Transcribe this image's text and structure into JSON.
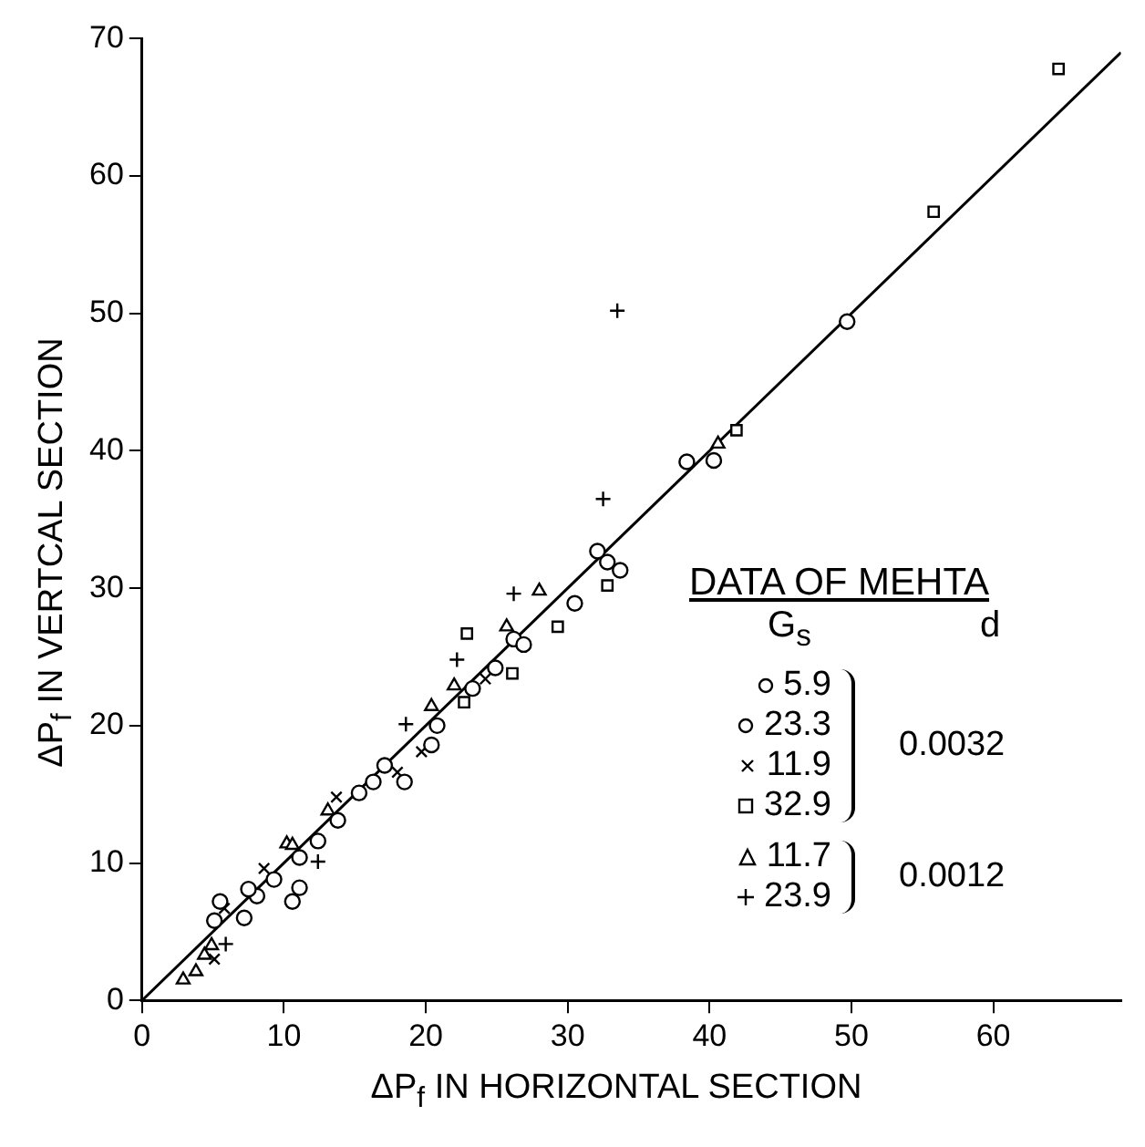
{
  "chart_data": {
    "type": "scatter",
    "xlabel": "ΔP$_{f}$ IN HORIZONTAL SECTION",
    "ylabel": "ΔP$_{f}$ IN VERTCAL SECTION",
    "legend_title": "DATA OF MEHTA",
    "annotations": [
      "G$_{s}$",
      "d",
      "0.0032",
      "0.0012"
    ],
    "xlim": [
      0,
      69
    ],
    "xticks": [
      0,
      10,
      20,
      30,
      40,
      50,
      60
    ],
    "ylim": [
      0,
      70
    ],
    "yticks": [
      0,
      10,
      20,
      30,
      40,
      50,
      60,
      70
    ],
    "grid": false,
    "legend": "right",
    "series": [
      {
        "name": "5.9",
        "color": "#000000",
        "marker": "circle",
        "x": [
          5.1,
          5.5,
          7.2,
          8.1,
          7.5,
          9.3,
          11.1,
          12.4,
          13.8,
          15.3,
          16.3,
          17.1,
          20.8,
          23.3,
          26.2,
          26.9,
          32.1,
          38.4
        ],
        "values": [
          5.8,
          7.2,
          6.0,
          7.6,
          8.1,
          8.8,
          10.4,
          11.6,
          13.1,
          15.1,
          15.9,
          17.1,
          20.0,
          22.7,
          26.3,
          25.9,
          32.7,
          39.2
        ]
      },
      {
        "name": "23.3",
        "color": "#000000",
        "marker": "circle",
        "x": [
          11.1,
          10.6,
          18.5,
          20.4,
          24.9,
          30.5,
          32.8,
          33.7,
          40.3,
          49.7
        ],
        "values": [
          8.2,
          7.2,
          15.9,
          18.6,
          24.2,
          28.9,
          31.9,
          31.3,
          39.3,
          49.4
        ]
      },
      {
        "name": "11.9",
        "color": "#000000",
        "marker": "x",
        "x": [
          5.1,
          5.8,
          8.6,
          13.7,
          18.0,
          19.7,
          24.2
        ],
        "values": [
          3.0,
          6.7,
          9.6,
          14.8,
          16.6,
          18.1,
          23.4
        ]
      },
      {
        "name": "32.9",
        "color": "#000000",
        "marker": "square",
        "x": [
          22.7,
          26.1,
          22.9,
          29.3,
          32.8,
          41.9,
          55.8,
          64.6
        ],
        "values": [
          21.7,
          23.8,
          26.7,
          27.2,
          30.2,
          41.5,
          57.4,
          67.8
        ]
      },
      {
        "name": "11.7",
        "color": "#000000",
        "marker": "triangle",
        "x": [
          2.9,
          3.8,
          4.4,
          4.9,
          10.2,
          10.6,
          13.1,
          20.4,
          22.0,
          25.7,
          28.0,
          40.6
        ],
        "values": [
          1.5,
          2.1,
          3.3,
          4.0,
          11.4,
          11.3,
          13.8,
          21.4,
          22.9,
          27.2,
          29.8,
          40.5
        ]
      },
      {
        "name": "23.9",
        "color": "#000000",
        "marker": "cross",
        "x": [
          5.9,
          12.4,
          18.6,
          22.2,
          26.2,
          32.5,
          33.5
        ],
        "values": [
          4.1,
          10.1,
          20.1,
          24.8,
          29.6,
          36.5,
          50.2
        ]
      },
      {
        "type": "line",
        "color": "#000000",
        "marker": "none",
        "x": [
          0,
          69
        ],
        "values": [
          0,
          69
        ]
      }
    ]
  }
}
